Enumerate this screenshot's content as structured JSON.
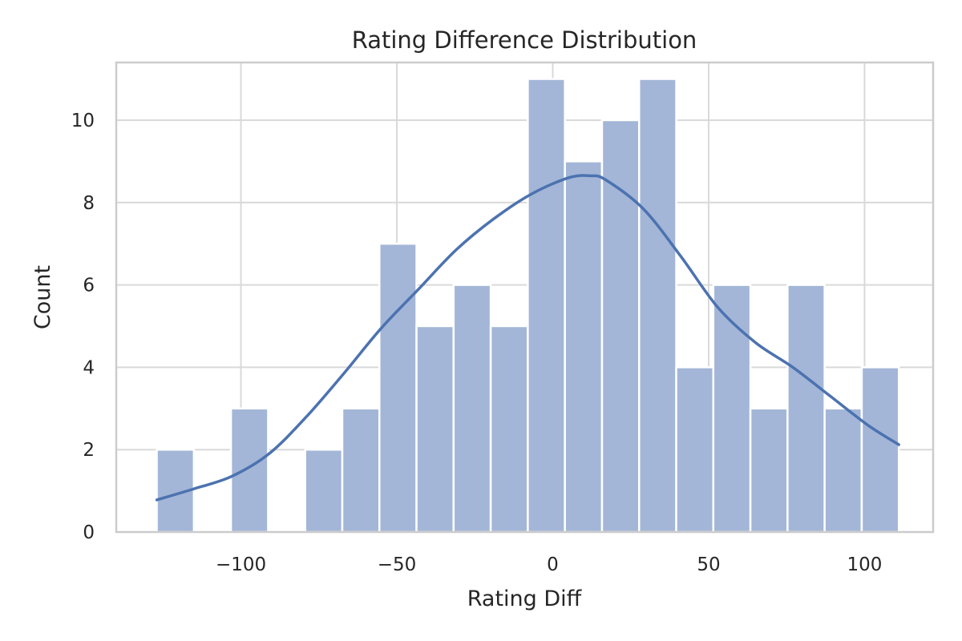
{
  "chart_data": {
    "type": "bar",
    "title": "Rating Difference Distribution",
    "xlabel": "Rating Diff",
    "ylabel": "Count",
    "xlim": [
      -140,
      122
    ],
    "ylim": [
      0,
      11.4
    ],
    "xticks": [
      -100,
      -50,
      0,
      50,
      100
    ],
    "yticks": [
      0,
      2,
      4,
      6,
      8,
      10
    ],
    "xtick_labels": [
      "−100",
      "−50",
      "0",
      "50",
      "100"
    ],
    "ytick_labels": [
      "0",
      "2",
      "4",
      "6",
      "8",
      "10"
    ],
    "bins": [
      {
        "x0": -127.0,
        "x1": -115.1,
        "count": 2
      },
      {
        "x0": -115.1,
        "x1": -103.2,
        "count": 0
      },
      {
        "x0": -103.2,
        "x1": -91.3,
        "count": 3
      },
      {
        "x0": -91.3,
        "x1": -79.4,
        "count": 0
      },
      {
        "x0": -79.4,
        "x1": -67.5,
        "count": 2
      },
      {
        "x0": -67.5,
        "x1": -55.6,
        "count": 3
      },
      {
        "x0": -55.6,
        "x1": -43.7,
        "count": 7
      },
      {
        "x0": -43.7,
        "x1": -31.8,
        "count": 5
      },
      {
        "x0": -31.8,
        "x1": -19.9,
        "count": 6
      },
      {
        "x0": -19.9,
        "x1": -8.0,
        "count": 5
      },
      {
        "x0": -8.0,
        "x1": 3.9,
        "count": 11
      },
      {
        "x0": 3.9,
        "x1": 15.8,
        "count": 9
      },
      {
        "x0": 15.8,
        "x1": 27.7,
        "count": 10
      },
      {
        "x0": 27.7,
        "x1": 39.6,
        "count": 11
      },
      {
        "x0": 39.6,
        "x1": 51.5,
        "count": 4
      },
      {
        "x0": 51.5,
        "x1": 63.4,
        "count": 6
      },
      {
        "x0": 63.4,
        "x1": 75.3,
        "count": 3
      },
      {
        "x0": 75.3,
        "x1": 87.2,
        "count": 6
      },
      {
        "x0": 87.2,
        "x1": 99.1,
        "count": 3
      },
      {
        "x0": 99.1,
        "x1": 111.0,
        "count": 4
      }
    ],
    "kde": {
      "x": [
        -127,
        -115,
        -103,
        -91,
        -79,
        -67,
        -55,
        -43,
        -31,
        -19,
        -7,
        5,
        12,
        17,
        29,
        41,
        53,
        65,
        77,
        89,
        101,
        111
      ],
      "y": [
        0.78,
        1.05,
        1.35,
        1.9,
        2.8,
        3.85,
        4.95,
        5.9,
        6.85,
        7.6,
        8.2,
        8.6,
        8.65,
        8.55,
        7.85,
        6.7,
        5.45,
        4.6,
        4.0,
        3.3,
        2.6,
        2.12
      ]
    },
    "grid": true,
    "legend": "none",
    "colors": {
      "bar_fill": "#a3b6d7",
      "bar_edge": "#ffffff",
      "kde_line": "#4c72b0",
      "grid": "#d9d9d9",
      "spine": "#cccccc",
      "text": "#262626"
    }
  }
}
